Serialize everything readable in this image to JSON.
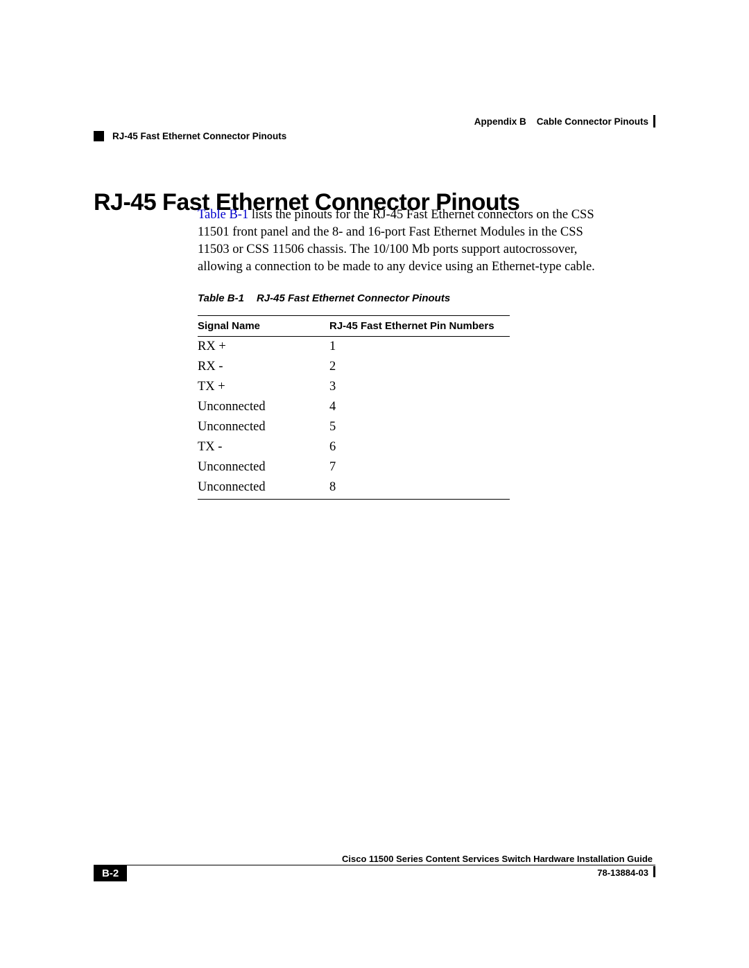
{
  "header": {
    "appendix_label": "Appendix B",
    "appendix_title": "Cable Connector Pinouts",
    "section_title": "RJ-45 Fast Ethernet Connector Pinouts"
  },
  "heading": "RJ-45 Fast Ethernet Connector Pinouts",
  "body": {
    "link_text": "Table B-1",
    "rest": " lists the pinouts for the RJ-45 Fast Ethernet connectors on the CSS 11501 front panel and the 8- and 16-port Fast Ethernet Modules in the CSS 11503 or CSS 11506 chassis. The 10/100 Mb ports support autocrossover, allowing a connection to be made to any device using an Ethernet-type cable."
  },
  "table": {
    "caption_num": "Table B-1",
    "caption_title": "RJ-45 Fast Ethernet Connector Pinouts",
    "columns": [
      "Signal Name",
      "RJ-45 Fast Ethernet Pin Numbers"
    ],
    "rows": [
      [
        "RX +",
        "1"
      ],
      [
        "RX -",
        "2"
      ],
      [
        "TX +",
        "3"
      ],
      [
        "Unconnected",
        "4"
      ],
      [
        "Unconnected",
        "5"
      ],
      [
        "TX -",
        "6"
      ],
      [
        "Unconnected",
        "7"
      ],
      [
        "Unconnected",
        "8"
      ]
    ]
  },
  "footer": {
    "guide_title": "Cisco 11500 Series Content Services Switch Hardware Installation Guide",
    "page_number": "B-2",
    "doc_number": "78-13884-03"
  },
  "colors": {
    "text": "#000000",
    "link": "#0000cc",
    "background": "#ffffff"
  },
  "fonts": {
    "body_family": "Times New Roman",
    "heading_family": "Arial",
    "heading_size_pt": 26,
    "body_size_pt": 14,
    "label_size_pt": 11
  }
}
